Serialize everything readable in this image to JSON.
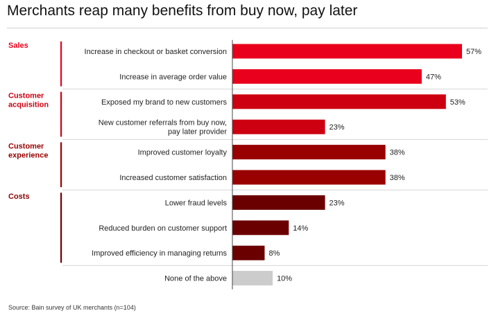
{
  "chart_data": {
    "type": "bar",
    "orientation": "horizontal",
    "title": "Merchants reap many benefits from buy now, pay later",
    "source": "Source: Bain survey of UK merchants (n=104)",
    "value_suffix": "%",
    "xlim": [
      0,
      60
    ],
    "grid": false,
    "groups": [
      {
        "label": [
          "Sales"
        ],
        "color": "#e8001c",
        "items": [
          {
            "category": [
              "Increase in checkout or basket conversion"
            ],
            "value": 57
          },
          {
            "category": [
              "Increase in average order value"
            ],
            "value": 47
          }
        ]
      },
      {
        "label": [
          "Customer",
          "acquisition"
        ],
        "color": "#cc0010",
        "items": [
          {
            "category": [
              "Exposed my brand to new customers"
            ],
            "value": 53
          },
          {
            "category": [
              "New customer referrals from buy now,",
              "pay later provider"
            ],
            "value": 23
          }
        ]
      },
      {
        "label": [
          "Customer",
          "experience"
        ],
        "color": "#990000",
        "items": [
          {
            "category": [
              "Improved customer loyalty"
            ],
            "value": 38
          },
          {
            "category": [
              "Increased customer satisfaction"
            ],
            "value": 38
          }
        ]
      },
      {
        "label": [
          "Costs"
        ],
        "color": "#6b0000",
        "items": [
          {
            "category": [
              "Lower fraud levels"
            ],
            "value": 23
          },
          {
            "category": [
              "Reduced burden on customer support"
            ],
            "value": 14
          },
          {
            "category": [
              "Improved efficiency in managing returns"
            ],
            "value": 8
          }
        ]
      },
      {
        "label": [],
        "color": "#cccccc",
        "items": [
          {
            "category": [
              "None of the above"
            ],
            "value": 10
          }
        ]
      }
    ]
  }
}
